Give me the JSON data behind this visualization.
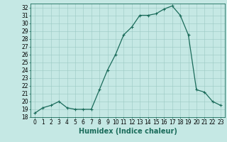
{
  "x": [
    0,
    1,
    2,
    3,
    4,
    5,
    6,
    7,
    8,
    9,
    10,
    11,
    12,
    13,
    14,
    15,
    16,
    17,
    18,
    19,
    20,
    21,
    22,
    23
  ],
  "y": [
    18.5,
    19.2,
    19.5,
    20.0,
    19.2,
    19.0,
    19.0,
    19.0,
    21.5,
    24.0,
    26.0,
    28.5,
    29.5,
    31.0,
    31.0,
    31.2,
    31.8,
    32.2,
    31.0,
    28.5,
    21.5,
    21.2,
    20.0,
    19.5
  ],
  "line_color": "#1a6b5a",
  "marker": "+",
  "markersize": 3,
  "linewidth": 0.9,
  "bg_color": "#c5e8e4",
  "grid_color": "#9ac8c2",
  "xlabel": "Humidex (Indice chaleur)",
  "xlim": [
    -0.5,
    23.5
  ],
  "ylim": [
    18,
    32.5
  ],
  "yticks": [
    18,
    19,
    20,
    21,
    22,
    23,
    24,
    25,
    26,
    27,
    28,
    29,
    30,
    31,
    32
  ],
  "xticks": [
    0,
    1,
    2,
    3,
    4,
    5,
    6,
    7,
    8,
    9,
    10,
    11,
    12,
    13,
    14,
    15,
    16,
    17,
    18,
    19,
    20,
    21,
    22,
    23
  ],
  "tick_label_fontsize": 5.5,
  "xlabel_fontsize": 7.0
}
